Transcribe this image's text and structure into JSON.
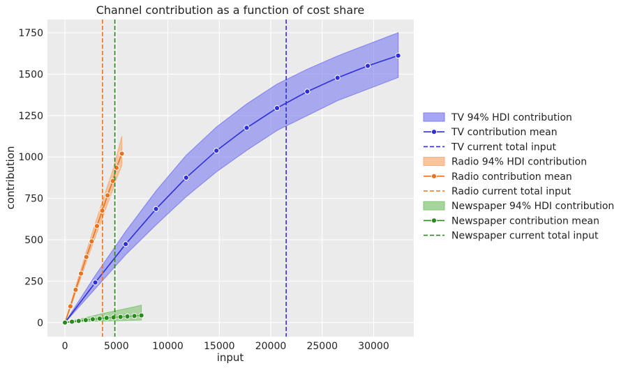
{
  "chart_data": {
    "type": "line",
    "title": "Channel contribution as a function of cost share",
    "xlabel": "input",
    "ylabel": "contribution",
    "xlim": [
      -1700,
      33900
    ],
    "ylim": [
      -85,
      1830
    ],
    "xticks": [
      0,
      5000,
      10000,
      15000,
      20000,
      25000,
      30000
    ],
    "yticks": [
      0,
      250,
      500,
      750,
      1000,
      1250,
      1500,
      1750
    ],
    "grid": true,
    "legend_position": "right",
    "series": [
      {
        "channel": "TV",
        "color": "#2d2fd9",
        "band_color": "#7f7ff0",
        "band_label": "TV 94% HDI contribution",
        "mean_label": "TV contribution mean",
        "current_label": "TV current total input",
        "current_total_input": 21500,
        "x": [
          0,
          2950,
          5900,
          8850,
          11780,
          14720,
          17660,
          20610,
          23550,
          26490,
          29430,
          32380
        ],
        "mean": [
          0,
          242,
          474,
          686,
          875,
          1038,
          1176,
          1295,
          1395,
          1478,
          1550,
          1612
        ],
        "lower": [
          0,
          205,
          410,
          590,
          760,
          910,
          1040,
          1160,
          1250,
          1340,
          1410,
          1480
        ],
        "upper": [
          0,
          285,
          550,
          795,
          1010,
          1180,
          1320,
          1440,
          1530,
          1610,
          1680,
          1750
        ]
      },
      {
        "channel": "Radio",
        "color": "#e8731c",
        "band_color": "#f6ad78",
        "band_label": "Radio 94% HDI contribution",
        "mean_label": "Radio contribution mean",
        "current_label": "Radio current total input",
        "current_total_input": 3650,
        "x": [
          0,
          530,
          1040,
          1560,
          2080,
          2600,
          3110,
          3630,
          4140,
          4650,
          5010,
          5530
        ],
        "mean": [
          0,
          98,
          198,
          296,
          396,
          490,
          583,
          676,
          768,
          855,
          935,
          1020
        ],
        "lower": [
          0,
          88,
          182,
          273,
          366,
          455,
          543,
          630,
          717,
          800,
          870,
          950
        ],
        "upper": [
          0,
          108,
          216,
          322,
          428,
          530,
          630,
          728,
          825,
          918,
          1005,
          1125
        ]
      },
      {
        "channel": "Newspaper",
        "color": "#2a8a1e",
        "band_color": "#82c574",
        "band_label": "Newspaper 94% HDI contribution",
        "mean_label": "Newspaper contribution mean",
        "current_label": "Newspaper current total input",
        "current_total_input": 4850,
        "x": [
          0,
          680,
          1340,
          2020,
          2700,
          3370,
          4050,
          4720,
          5400,
          6070,
          6750,
          7430
        ],
        "mean": [
          0,
          5,
          10,
          15,
          20,
          24,
          28,
          31,
          34,
          37,
          40,
          43
        ],
        "lower": [
          0,
          2,
          4,
          6,
          8,
          9,
          10,
          11,
          12,
          13,
          14,
          15
        ],
        "upper": [
          0,
          10,
          20,
          30,
          40,
          50,
          59,
          68,
          77,
          86,
          95,
          105
        ]
      }
    ]
  }
}
